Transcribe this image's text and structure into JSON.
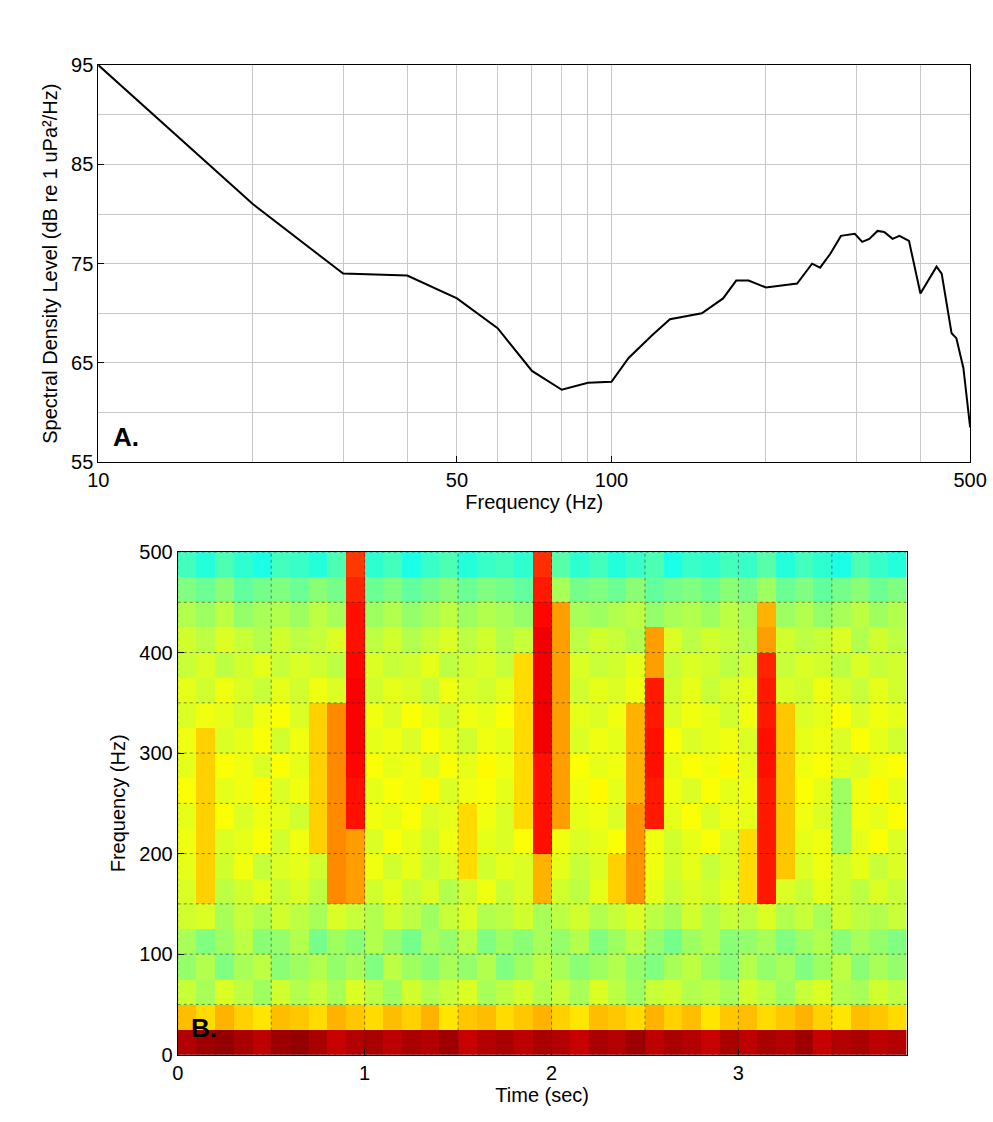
{
  "chart_data": [
    {
      "type": "line",
      "label": "A.",
      "xlabel": "Frequency (Hz)",
      "ylabel": "Spectral Density Level (dB re 1 uPa²/Hz)",
      "log": "x",
      "grid": true,
      "color": "#000000",
      "x": [
        10,
        20,
        30,
        40,
        50,
        60,
        70,
        80,
        90,
        100,
        108,
        120,
        130,
        150,
        165,
        175,
        185,
        200,
        230,
        246,
        255,
        267,
        280,
        298,
        308,
        318,
        330,
        340,
        353,
        364,
        380,
        400,
        430,
        440,
        460,
        470,
        485,
        500
      ],
      "values": [
        95,
        81,
        74,
        73.8,
        71.5,
        68.5,
        64.2,
        62.3,
        63,
        63.1,
        65.5,
        67.8,
        69.4,
        70,
        71.5,
        73.3,
        73.3,
        72.6,
        73,
        75,
        74.6,
        76,
        77.8,
        78,
        77.2,
        77.5,
        78.3,
        78.2,
        77.5,
        77.8,
        77.3,
        72,
        74.7,
        74,
        68,
        67.5,
        64.5,
        58.5
      ],
      "xlim": [
        10,
        500
      ],
      "ylim": [
        55,
        95
      ],
      "xticks": [
        10,
        50,
        100,
        500
      ],
      "minor_xticks": [
        20,
        30,
        40,
        60,
        70,
        80,
        90,
        200,
        300,
        400
      ],
      "yticks": [
        55,
        65,
        75,
        85,
        95
      ],
      "minor_yticks": [
        60,
        70,
        80,
        90
      ]
    },
    {
      "type": "heatmap",
      "label": "B.",
      "xlabel": "Time (sec)",
      "ylabel": "Frequency (Hz)",
      "grid": true,
      "color": "jet",
      "x": [
        0.05,
        0.15,
        0.25,
        0.35,
        0.45,
        0.55,
        0.65,
        0.75,
        0.85,
        0.95,
        1.05,
        1.15,
        1.25,
        1.35,
        1.45,
        1.55,
        1.65,
        1.75,
        1.85,
        1.95,
        2.05,
        2.15,
        2.25,
        2.35,
        2.45,
        2.55,
        2.65,
        2.75,
        2.85,
        2.95,
        3.05,
        3.15,
        3.25,
        3.35,
        3.45,
        3.55,
        3.65,
        3.75,
        3.85
      ],
      "y": [
        12.5,
        37.5,
        62.5,
        87.5,
        112.5,
        137.5,
        162.5,
        187.5,
        212.5,
        237.5,
        262.5,
        287.5,
        312.5,
        337.5,
        362.5,
        387.5,
        412.5,
        437.5,
        462.5,
        487.5
      ],
      "z": [
        [
          9.5,
          9.7,
          9.8,
          9.6,
          9.4,
          9.7,
          9.8,
          9.6,
          9.3,
          9.5,
          9.6,
          9.4,
          9.6,
          9.5,
          9.7,
          9.3,
          9.5,
          9.6,
          9.4,
          9.6,
          9.5,
          9.3,
          9.6,
          9.5,
          9.7,
          9.4,
          9.6,
          9.5,
          9.3,
          9.6,
          9.4,
          9.6,
          9.5,
          9.7,
          9.3,
          9.5,
          9.6,
          9.4,
          9.5
        ],
        [
          6.9,
          6.6,
          7.0,
          6.7,
          6.5,
          6.9,
          6.8,
          6.6,
          7.0,
          6.8,
          6.6,
          6.9,
          6.7,
          7.0,
          6.5,
          6.8,
          6.9,
          6.6,
          6.8,
          7.0,
          6.7,
          6.5,
          6.9,
          6.8,
          6.6,
          7.0,
          6.7,
          6.9,
          6.5,
          6.8,
          6.9,
          6.6,
          6.8,
          7.0,
          6.7,
          6.5,
          6.9,
          6.8,
          6.6
        ],
        [
          5.7,
          5.4,
          5.9,
          5.6,
          5.3,
          5.8,
          5.5,
          5.7,
          5.4,
          5.9,
          5.6,
          5.3,
          5.8,
          5.5,
          5.7,
          5.9,
          5.4,
          5.6,
          5.8,
          5.5,
          5.7,
          5.4,
          5.9,
          5.6,
          5.3,
          5.7,
          5.8,
          5.5,
          5.6,
          5.4,
          5.8,
          5.6,
          5.3,
          5.7,
          5.9,
          5.5,
          5.4,
          5.8,
          5.6
        ],
        [
          5.2,
          5.5,
          5.0,
          5.4,
          5.6,
          5.1,
          5.3,
          5.5,
          5.2,
          5.4,
          5.0,
          5.6,
          5.3,
          5.1,
          5.4,
          5.2,
          5.5,
          5.0,
          5.3,
          5.6,
          5.4,
          5.1,
          5.3,
          5.5,
          5.2,
          5.0,
          5.4,
          5.6,
          5.3,
          5.1,
          5.5,
          5.2,
          5.4,
          5.0,
          5.3,
          5.6,
          5.1,
          5.4,
          5.2
        ],
        [
          5.4,
          5.0,
          5.3,
          5.6,
          5.1,
          5.2,
          5.5,
          4.9,
          5.3,
          5.1,
          5.5,
          5.2,
          4.9,
          5.4,
          5.2,
          5.6,
          5.0,
          5.3,
          5.1,
          5.4,
          5.2,
          5.5,
          5.0,
          5.3,
          5.6,
          5.2,
          4.9,
          5.3,
          5.5,
          5.1,
          5.2,
          5.4,
          5.0,
          5.3,
          5.5,
          5.1,
          5.4,
          5.2,
          5.0
        ],
        [
          5.8,
          5.9,
          5.4,
          5.7,
          5.5,
          5.8,
          5.6,
          5.4,
          5.9,
          5.7,
          5.5,
          5.8,
          5.6,
          5.3,
          5.7,
          5.9,
          5.5,
          5.6,
          5.8,
          5.4,
          5.6,
          5.8,
          5.5,
          5.7,
          5.9,
          5.6,
          5.4,
          5.8,
          5.5,
          5.7,
          5.6,
          5.9,
          5.5,
          5.7,
          5.4,
          5.8,
          5.6,
          5.5,
          5.7
        ],
        [
          5.9,
          6.7,
          5.6,
          5.8,
          6.0,
          5.7,
          5.9,
          5.6,
          7.4,
          7.2,
          5.8,
          6.0,
          5.7,
          5.9,
          5.5,
          5.8,
          6.1,
          5.7,
          5.9,
          7.0,
          5.8,
          5.6,
          6.0,
          6.7,
          7.3,
          6.0,
          5.7,
          5.9,
          5.8,
          6.0,
          6.6,
          8.5,
          5.9,
          5.7,
          6.0,
          5.8,
          5.6,
          5.9,
          5.7
        ],
        [
          6.0,
          6.7,
          5.8,
          6.1,
          5.7,
          5.9,
          6.0,
          5.8,
          7.4,
          7.2,
          6.1,
          5.8,
          6.0,
          5.7,
          5.9,
          6.6,
          5.8,
          6.0,
          5.9,
          7.0,
          6.0,
          5.7,
          5.9,
          6.7,
          7.3,
          6.1,
          5.8,
          6.0,
          5.7,
          5.9,
          6.6,
          8.5,
          6.8,
          5.9,
          6.1,
          5.8,
          6.0,
          5.7,
          5.9
        ],
        [
          6.1,
          6.7,
          5.9,
          6.0,
          6.2,
          5.8,
          6.1,
          6.7,
          7.4,
          7.2,
          5.9,
          6.2,
          6.0,
          5.8,
          6.1,
          6.6,
          6.0,
          5.9,
          6.2,
          8.6,
          6.1,
          5.9,
          6.0,
          6.2,
          7.3,
          6.1,
          5.8,
          6.0,
          6.2,
          5.9,
          6.6,
          8.5,
          6.8,
          6.0,
          6.1,
          5.3,
          6.0,
          6.2,
          5.9
        ],
        [
          6.0,
          6.7,
          6.2,
          5.9,
          6.1,
          6.0,
          5.8,
          6.7,
          7.4,
          8.6,
          6.1,
          6.0,
          6.2,
          5.9,
          6.0,
          6.6,
          6.1,
          5.9,
          6.6,
          8.6,
          7.2,
          6.0,
          6.1,
          5.9,
          7.3,
          8.5,
          6.0,
          6.2,
          5.9,
          6.1,
          6.0,
          8.5,
          6.8,
          6.1,
          5.9,
          5.3,
          6.1,
          6.0,
          6.2
        ],
        [
          6.2,
          6.7,
          6.0,
          6.1,
          6.3,
          5.9,
          6.1,
          6.7,
          7.4,
          8.6,
          6.0,
          6.2,
          6.1,
          6.3,
          5.9,
          6.1,
          6.2,
          6.0,
          6.6,
          8.6,
          7.2,
          6.1,
          6.3,
          6.0,
          7.0,
          8.5,
          6.1,
          5.9,
          6.2,
          6.0,
          6.1,
          8.5,
          6.8,
          6.2,
          6.0,
          5.3,
          6.1,
          6.3,
          6.0
        ],
        [
          6.0,
          6.7,
          6.2,
          6.1,
          5.9,
          6.2,
          6.0,
          6.7,
          7.4,
          8.7,
          6.2,
          6.0,
          6.1,
          5.9,
          6.2,
          6.0,
          6.3,
          6.1,
          6.6,
          8.6,
          7.2,
          6.2,
          6.0,
          6.1,
          7.0,
          8.6,
          6.0,
          6.2,
          6.1,
          6.3,
          6.0,
          8.6,
          6.8,
          6.1,
          6.2,
          6.0,
          5.9,
          6.1,
          6.2
        ],
        [
          6.1,
          6.7,
          5.9,
          6.0,
          6.2,
          5.8,
          6.1,
          6.7,
          7.4,
          8.8,
          6.0,
          6.1,
          5.9,
          6.2,
          6.0,
          5.8,
          6.1,
          6.0,
          6.6,
          8.9,
          7.2,
          5.9,
          6.1,
          6.0,
          7.0,
          8.6,
          6.2,
          5.9,
          6.0,
          6.1,
          5.9,
          8.6,
          6.8,
          6.0,
          6.1,
          5.9,
          6.2,
          6.0,
          5.8
        ],
        [
          5.9,
          6.1,
          6.0,
          5.8,
          6.1,
          6.2,
          5.9,
          6.7,
          7.4,
          8.8,
          6.1,
          5.9,
          6.2,
          6.0,
          5.8,
          6.1,
          6.0,
          6.2,
          6.6,
          8.9,
          7.2,
          6.0,
          5.9,
          6.1,
          7.0,
          8.5,
          5.9,
          6.1,
          6.0,
          5.8,
          6.1,
          8.5,
          6.8,
          5.9,
          6.0,
          6.2,
          5.9,
          6.1,
          6.0
        ],
        [
          6.0,
          5.8,
          6.1,
          5.9,
          5.7,
          6.0,
          5.8,
          6.1,
          5.9,
          8.8,
          5.8,
          6.0,
          5.9,
          5.7,
          6.1,
          5.9,
          5.8,
          6.0,
          6.6,
          8.9,
          7.2,
          5.8,
          6.0,
          5.9,
          6.1,
          8.5,
          5.8,
          6.0,
          5.7,
          5.9,
          6.0,
          8.5,
          5.9,
          5.8,
          6.1,
          5.9,
          5.7,
          6.0,
          5.8
        ],
        [
          5.7,
          5.9,
          5.6,
          5.8,
          6.0,
          5.7,
          5.9,
          5.8,
          5.6,
          8.7,
          5.9,
          5.7,
          5.8,
          6.0,
          5.6,
          5.8,
          5.9,
          5.7,
          6.6,
          8.9,
          7.2,
          5.9,
          5.7,
          5.8,
          6.0,
          7.2,
          5.7,
          5.9,
          5.8,
          5.6,
          5.8,
          8.4,
          5.7,
          5.9,
          5.8,
          5.6,
          5.9,
          5.7,
          5.8
        ],
        [
          5.8,
          5.6,
          5.9,
          5.7,
          5.5,
          5.8,
          5.6,
          5.7,
          5.9,
          8.6,
          5.6,
          5.8,
          5.5,
          5.7,
          5.9,
          5.6,
          5.8,
          5.5,
          5.7,
          8.9,
          7.2,
          5.6,
          5.8,
          5.7,
          5.5,
          7.2,
          5.9,
          5.6,
          5.8,
          5.7,
          5.5,
          7.2,
          5.8,
          5.6,
          5.7,
          5.9,
          5.5,
          5.8,
          5.6
        ],
        [
          5.5,
          5.3,
          5.6,
          5.2,
          5.4,
          5.5,
          5.3,
          5.6,
          5.4,
          8.6,
          5.3,
          5.5,
          5.2,
          5.4,
          5.6,
          5.3,
          5.5,
          5.4,
          5.2,
          8.7,
          7.2,
          5.4,
          5.3,
          5.5,
          5.6,
          5.2,
          5.4,
          5.5,
          5.3,
          5.6,
          5.4,
          7.0,
          5.3,
          5.5,
          5.2,
          5.4,
          5.6,
          5.3,
          5.5
        ],
        [
          5.0,
          4.8,
          5.1,
          4.7,
          4.9,
          5.0,
          4.8,
          5.1,
          4.9,
          8.4,
          4.8,
          5.0,
          4.7,
          4.9,
          5.1,
          4.8,
          5.0,
          4.9,
          4.7,
          8.5,
          5.4,
          4.9,
          5.0,
          4.8,
          5.1,
          4.7,
          4.9,
          5.0,
          4.8,
          5.1,
          4.9,
          5.3,
          4.8,
          5.0,
          4.7,
          4.9,
          5.1,
          4.8,
          5.0
        ],
        [
          4.4,
          4.1,
          4.5,
          4.2,
          4.0,
          4.4,
          4.3,
          4.1,
          4.5,
          8.2,
          4.2,
          4.4,
          4.0,
          4.3,
          4.5,
          4.1,
          4.3,
          4.4,
          4.2,
          8.3,
          4.6,
          4.2,
          4.4,
          4.1,
          4.3,
          4.5,
          4.0,
          4.3,
          4.2,
          4.4,
          4.3,
          4.6,
          4.1,
          4.4,
          4.2,
          4.0,
          4.5,
          4.3,
          4.1
        ]
      ],
      "zlim": [
        0,
        10
      ],
      "xlim": [
        0,
        3.9
      ],
      "ylim": [
        0,
        500
      ],
      "xticks": [
        0,
        1,
        2,
        3
      ],
      "minor_xticks": [
        0.5,
        1.5,
        2.5,
        3.5
      ],
      "yticks": [
        0,
        100,
        200,
        300,
        400,
        500
      ],
      "minor_yticks": [
        50,
        150,
        250,
        350,
        450
      ]
    }
  ]
}
